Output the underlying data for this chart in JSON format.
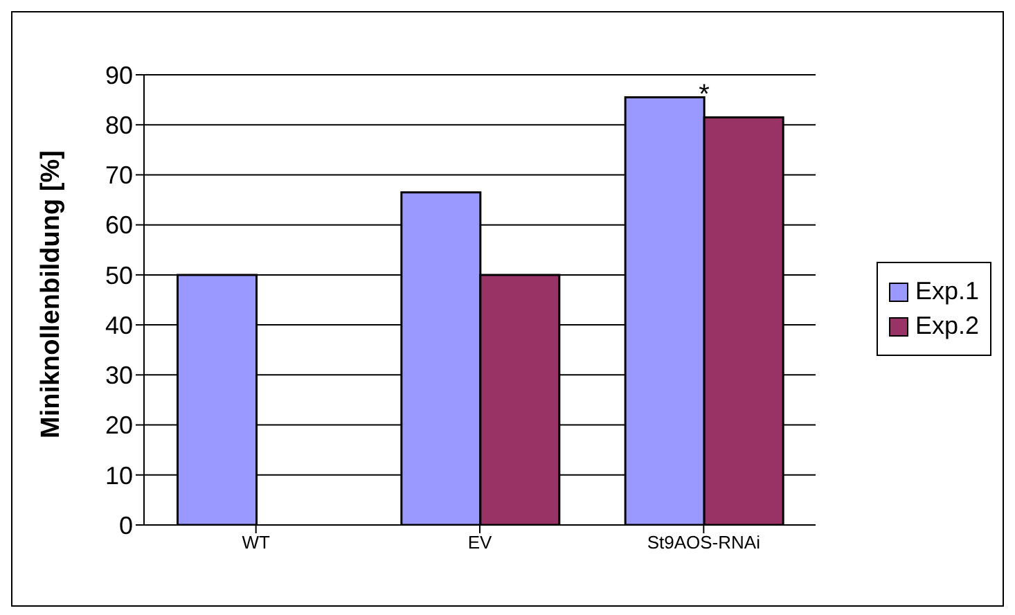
{
  "chart_data": {
    "type": "bar",
    "ylabel": "Miniknollenbildung [%]",
    "categories": [
      "WT",
      "EV",
      "St9AOS-RNAi"
    ],
    "series": [
      {
        "name": "Exp.1",
        "color": "#9999ff",
        "values": [
          50,
          66.5,
          85.5
        ]
      },
      {
        "name": "Exp.2",
        "color": "#993366",
        "values": [
          null,
          50,
          81.5
        ]
      }
    ],
    "ylim": [
      0,
      90
    ],
    "yticks": [
      0,
      10,
      20,
      30,
      40,
      50,
      60,
      70,
      80,
      90
    ],
    "grid": "y",
    "legend": "right",
    "annotations": [
      {
        "text": "*",
        "x": "St9AOS-RNAi",
        "y": 85.5
      }
    ]
  }
}
